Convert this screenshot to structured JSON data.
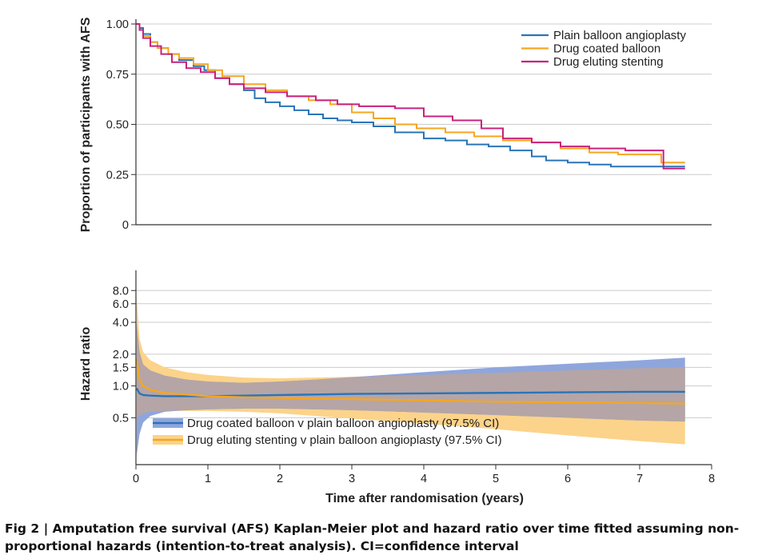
{
  "caption": "Fig 2 | Amputation free survival (AFS) Kaplan-Meier plot and hazard ratio over time fitted assuming non-proportional hazards (intention-to-treat analysis). CI=confidence interval",
  "colors": {
    "plain": "#2a74b8",
    "dcb": "#f5a623",
    "des": "#c8227c",
    "dcb_band": "#8fa6dc",
    "des_band": "#fcd38a",
    "overlap": "#b5a5a6",
    "grid": "#cccccc",
    "axis": "#333333"
  },
  "chart_data": [
    {
      "type": "line",
      "subtype": "step",
      "ylabel": "Proportion of participants with AFS",
      "ylim": [
        0,
        1.0
      ],
      "xlim": [
        0,
        8
      ],
      "yticks": [
        0,
        0.25,
        0.5,
        0.75,
        1.0
      ],
      "ytick_labels": [
        "0",
        "0.25",
        "0.50",
        "0.75",
        "1.00"
      ],
      "grid": true,
      "legend_position": "top-right",
      "series": [
        {
          "name": "Plain balloon angioplasty",
          "x": [
            0,
            0.05,
            0.1,
            0.2,
            0.3,
            0.45,
            0.6,
            0.8,
            0.95,
            1.1,
            1.3,
            1.5,
            1.65,
            1.8,
            2.0,
            2.2,
            2.4,
            2.6,
            2.8,
            3.0,
            3.3,
            3.6,
            4.0,
            4.3,
            4.6,
            4.9,
            5.2,
            5.5,
            5.7,
            6.0,
            6.3,
            6.6,
            7.0,
            7.3,
            7.63
          ],
          "y": [
            1.0,
            0.98,
            0.95,
            0.91,
            0.88,
            0.85,
            0.82,
            0.79,
            0.77,
            0.73,
            0.7,
            0.67,
            0.63,
            0.61,
            0.59,
            0.57,
            0.55,
            0.53,
            0.52,
            0.51,
            0.49,
            0.46,
            0.43,
            0.42,
            0.4,
            0.39,
            0.37,
            0.34,
            0.32,
            0.31,
            0.3,
            0.29,
            0.29,
            0.29,
            0.29
          ]
        },
        {
          "name": "Drug coated balloon",
          "x": [
            0,
            0.05,
            0.1,
            0.2,
            0.3,
            0.45,
            0.6,
            0.8,
            1.0,
            1.2,
            1.5,
            1.8,
            2.1,
            2.4,
            2.7,
            3.0,
            3.3,
            3.6,
            3.9,
            4.3,
            4.7,
            5.1,
            5.5,
            5.9,
            6.3,
            6.7,
            7.0,
            7.3,
            7.63
          ],
          "y": [
            1.0,
            0.97,
            0.94,
            0.91,
            0.88,
            0.85,
            0.83,
            0.8,
            0.77,
            0.74,
            0.7,
            0.67,
            0.64,
            0.62,
            0.6,
            0.56,
            0.53,
            0.5,
            0.48,
            0.46,
            0.44,
            0.42,
            0.41,
            0.38,
            0.36,
            0.35,
            0.35,
            0.31,
            0.31
          ]
        },
        {
          "name": "Drug eluting stenting",
          "x": [
            0,
            0.05,
            0.1,
            0.2,
            0.35,
            0.5,
            0.7,
            0.9,
            1.1,
            1.3,
            1.5,
            1.8,
            2.1,
            2.5,
            2.8,
            3.1,
            3.6,
            4.0,
            4.4,
            4.8,
            5.1,
            5.5,
            5.9,
            6.3,
            6.8,
            7.33,
            7.63
          ],
          "y": [
            1.0,
            0.97,
            0.93,
            0.89,
            0.85,
            0.81,
            0.78,
            0.76,
            0.73,
            0.7,
            0.68,
            0.66,
            0.64,
            0.62,
            0.6,
            0.59,
            0.58,
            0.54,
            0.52,
            0.48,
            0.43,
            0.41,
            0.39,
            0.38,
            0.37,
            0.28,
            0.28
          ]
        }
      ]
    },
    {
      "type": "line",
      "subtype": "hazard-ratio-with-ci-bands",
      "ylabel": "Hazard ratio",
      "xlabel": "Time after randomisation (years)",
      "xlim": [
        0,
        8
      ],
      "xticks": [
        0,
        1,
        2,
        3,
        4,
        5,
        6,
        7,
        8
      ],
      "xtick_labels": [
        "0",
        "1",
        "2",
        "3",
        "4",
        "5",
        "6",
        "7",
        "8"
      ],
      "yscale": "log",
      "ylim": [
        0.18,
        12
      ],
      "yticks": [
        0.5,
        1.0,
        1.5,
        2.0,
        4.0,
        6.0,
        8.0
      ],
      "ytick_labels": [
        "0.5",
        "1.0",
        "1.5",
        "2.0",
        "4.0",
        "6.0",
        "8.0"
      ],
      "grid": true,
      "legend_position": "bottom-left",
      "series": [
        {
          "name": "Drug coated balloon v plain balloon angioplasty (97.5% CI)",
          "x": [
            0.01,
            0.05,
            0.1,
            0.2,
            0.4,
            0.7,
            1.0,
            1.5,
            2.0,
            2.5,
            3.0,
            4.0,
            5.0,
            6.0,
            7.0,
            7.63
          ],
          "y": [
            0.95,
            0.85,
            0.82,
            0.81,
            0.8,
            0.8,
            0.8,
            0.81,
            0.82,
            0.83,
            0.84,
            0.85,
            0.86,
            0.87,
            0.88,
            0.88
          ],
          "lower": [
            0.22,
            0.35,
            0.45,
            0.52,
            0.57,
            0.59,
            0.6,
            0.61,
            0.61,
            0.6,
            0.59,
            0.56,
            0.53,
            0.5,
            0.47,
            0.46
          ],
          "upper": [
            3.8,
            2.1,
            1.6,
            1.4,
            1.25,
            1.15,
            1.1,
            1.07,
            1.1,
            1.15,
            1.21,
            1.35,
            1.5,
            1.62,
            1.75,
            1.85
          ]
        },
        {
          "name": "Drug eluting stenting v plain balloon angioplasty (97.5% CI)",
          "x": [
            0.01,
            0.05,
            0.1,
            0.2,
            0.4,
            0.7,
            1.0,
            1.5,
            2.0,
            2.5,
            3.0,
            4.0,
            5.0,
            6.0,
            7.0,
            7.63
          ],
          "y": [
            1.8,
            1.15,
            1.0,
            0.92,
            0.86,
            0.83,
            0.8,
            0.78,
            0.77,
            0.76,
            0.75,
            0.73,
            0.71,
            0.7,
            0.69,
            0.68
          ],
          "lower": [
            0.5,
            0.52,
            0.55,
            0.57,
            0.58,
            0.58,
            0.58,
            0.57,
            0.55,
            0.52,
            0.49,
            0.44,
            0.39,
            0.34,
            0.3,
            0.28
          ],
          "upper": [
            7.0,
            2.8,
            2.1,
            1.75,
            1.5,
            1.35,
            1.27,
            1.2,
            1.18,
            1.2,
            1.22,
            1.27,
            1.33,
            1.4,
            1.47,
            1.5
          ]
        }
      ]
    }
  ]
}
